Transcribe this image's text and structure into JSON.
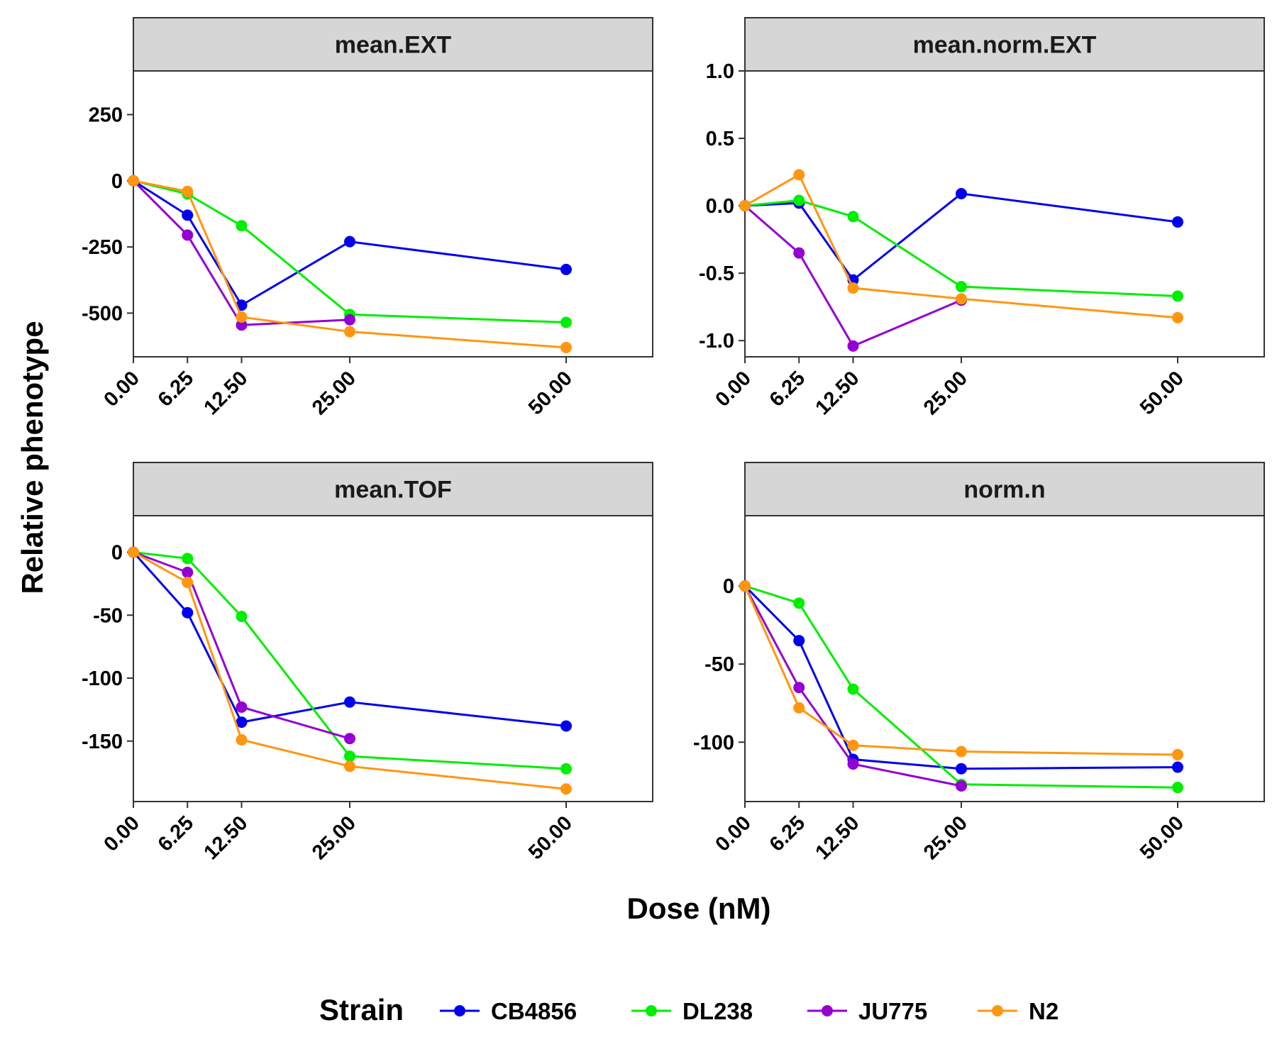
{
  "chart_data": {
    "type": "line",
    "xlabel": "Dose (nM)",
    "ylabel": "Relative phenotype",
    "x": [
      0,
      6.25,
      12.5,
      25,
      50
    ],
    "x_tick_labels": [
      "0.00",
      "6.25",
      "12.50",
      "25.00",
      "50.00"
    ],
    "xlim": [
      0,
      60
    ],
    "grid": false,
    "legend": {
      "title": "Strain",
      "position": "bottom",
      "entries": [
        "CB4856",
        "DL238",
        "JU775",
        "N2"
      ]
    },
    "colors": {
      "CB4856": "#0000EE",
      "DL238": "#00EE00",
      "JU775": "#9400D3",
      "N2": "#FF9610"
    },
    "panels": [
      {
        "title": "mean.EXT",
        "ylim": [
          -665,
          415
        ],
        "yticks": [
          -500,
          -250,
          0,
          250
        ],
        "ytick_labels": [
          "-500",
          "-250",
          "0",
          "250"
        ],
        "series": [
          {
            "name": "CB4856",
            "values": [
              0,
              -130,
              -470,
              -230,
              -335
            ]
          },
          {
            "name": "DL238",
            "values": [
              0,
              -50,
              -170,
              -505,
              -535
            ]
          },
          {
            "name": "JU775",
            "values": [
              0,
              -205,
              -545,
              -525,
              null
            ]
          },
          {
            "name": "N2",
            "values": [
              0,
              -40,
              -515,
              -570,
              -630
            ]
          }
        ]
      },
      {
        "title": "mean.norm.EXT",
        "ylim": [
          -1.12,
          1.0
        ],
        "yticks": [
          -1.0,
          -0.5,
          0.0,
          0.5,
          1.0
        ],
        "ytick_labels": [
          "-1.0",
          "-0.5",
          "0.0",
          "0.5",
          "1.0"
        ],
        "series": [
          {
            "name": "CB4856",
            "values": [
              0,
              0.02,
              -0.55,
              0.09,
              -0.12
            ]
          },
          {
            "name": "DL238",
            "values": [
              0,
              0.04,
              -0.08,
              -0.6,
              -0.67
            ]
          },
          {
            "name": "JU775",
            "values": [
              0,
              -0.35,
              -1.04,
              -0.7,
              null
            ]
          },
          {
            "name": "N2",
            "values": [
              0,
              0.23,
              -0.61,
              -0.69,
              -0.83
            ]
          }
        ]
      },
      {
        "title": "mean.TOF",
        "ylim": [
          -198,
          29
        ],
        "yticks": [
          -150,
          -100,
          -50,
          0
        ],
        "ytick_labels": [
          "-150",
          "-100",
          "-50",
          "0"
        ],
        "series": [
          {
            "name": "CB4856",
            "values": [
              0,
              -48,
              -135,
              -119,
              -138
            ]
          },
          {
            "name": "DL238",
            "values": [
              0,
              -5,
              -51,
              -162,
              -172
            ]
          },
          {
            "name": "JU775",
            "values": [
              0,
              -16,
              -123,
              -148,
              null
            ]
          },
          {
            "name": "N2",
            "values": [
              0,
              -24,
              -149,
              -170,
              -188
            ]
          }
        ]
      },
      {
        "title": "norm.n",
        "ylim": [
          -138,
          45
        ],
        "yticks": [
          -100,
          -50,
          0
        ],
        "ytick_labels": [
          "-100",
          "-50",
          "0"
        ],
        "series": [
          {
            "name": "CB4856",
            "values": [
              0,
              -35,
              -111,
              -117,
              -116
            ]
          },
          {
            "name": "DL238",
            "values": [
              0,
              -11,
              -66,
              -127,
              -129
            ]
          },
          {
            "name": "JU775",
            "values": [
              0,
              -65,
              -114,
              -128,
              null
            ]
          },
          {
            "name": "N2",
            "values": [
              0,
              -78,
              -102,
              -106,
              -108
            ]
          }
        ]
      }
    ]
  }
}
